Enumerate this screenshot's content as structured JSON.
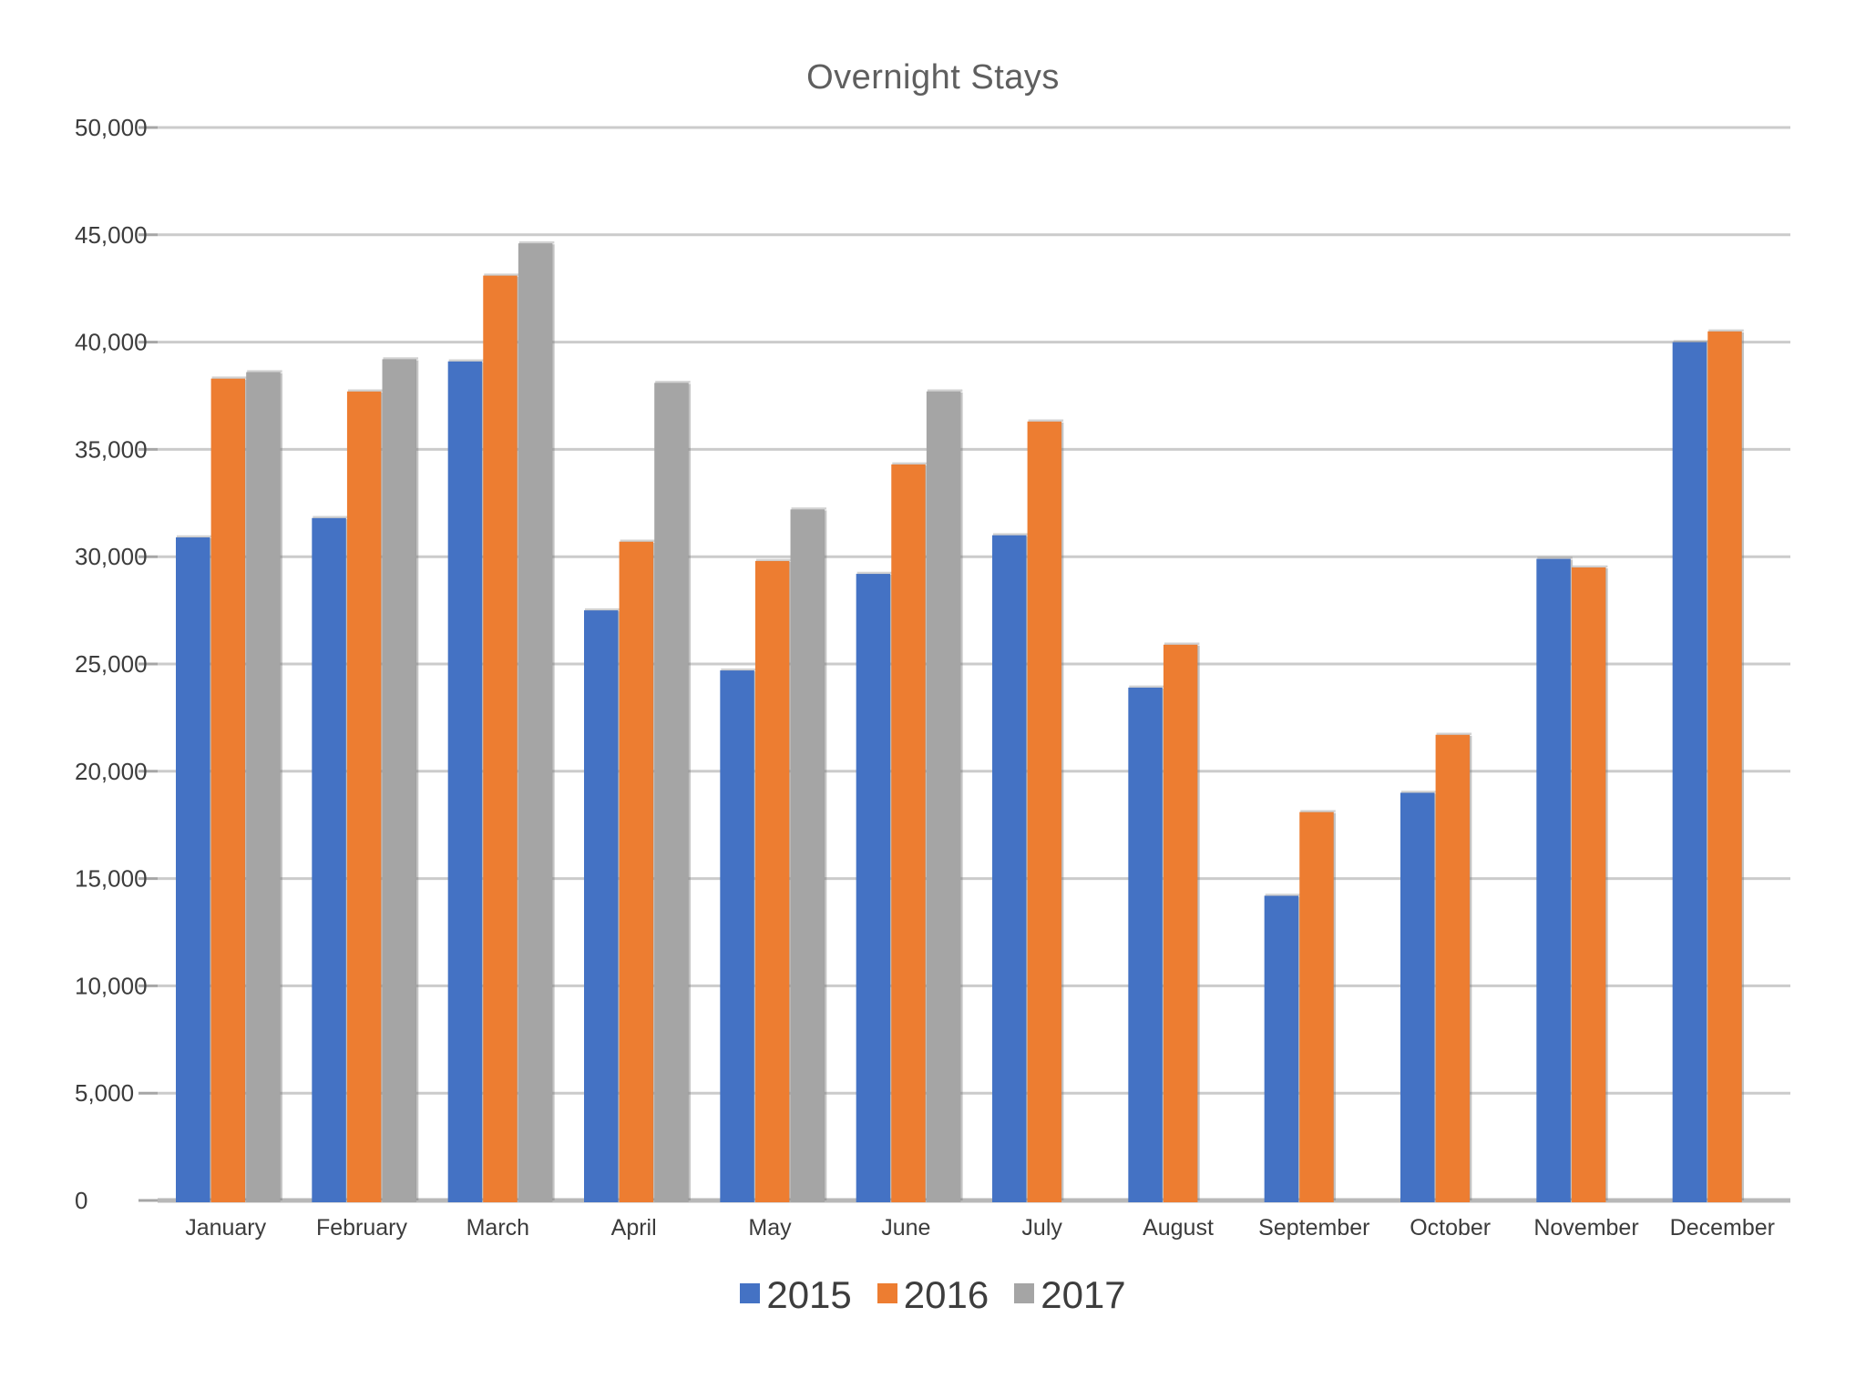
{
  "chart_data": {
    "type": "bar",
    "title": "Overnight Stays",
    "categories": [
      "January",
      "February",
      "March",
      "April",
      "May",
      "June",
      "July",
      "August",
      "September",
      "October",
      "November",
      "December"
    ],
    "series": [
      {
        "name": "2015",
        "color": "#4472C4",
        "values": [
          30900,
          31800,
          39100,
          27500,
          24700,
          29200,
          31000,
          23900,
          14200,
          19000,
          29900,
          40000
        ]
      },
      {
        "name": "2016",
        "color": "#ED7D31",
        "values": [
          38300,
          37700,
          43100,
          30700,
          29800,
          34300,
          36300,
          25900,
          18100,
          21700,
          29500,
          40500
        ]
      },
      {
        "name": "2017",
        "color": "#A5A5A5",
        "values": [
          38600,
          39200,
          44600,
          38100,
          32200,
          37700,
          null,
          null,
          null,
          null,
          null,
          null
        ]
      }
    ],
    "xlabel": "",
    "ylabel": "",
    "ylim": [
      0,
      50000
    ],
    "ytick_interval": 5000,
    "ytick_labels": [
      "0",
      "5,000",
      "10,000",
      "15,000",
      "20,000",
      "25,000",
      "30,000",
      "35,000",
      "40,000",
      "45,000",
      "50,000"
    ],
    "grid": true,
    "legend_position": "bottom",
    "text_color": "#3c3c3c",
    "gridline_color": "#cbcbcb",
    "baseline_color": "#b8b8b8"
  }
}
